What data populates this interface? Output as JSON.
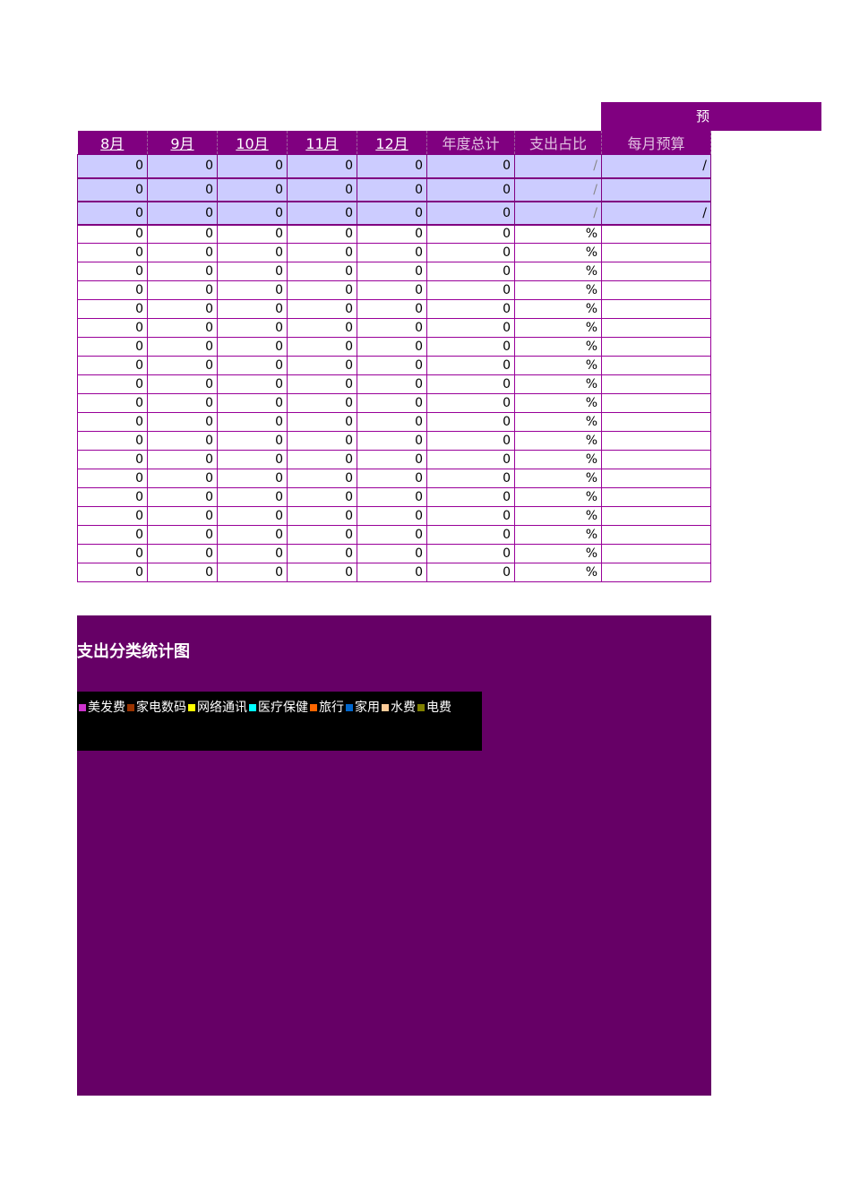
{
  "banner": "预",
  "headers": [
    {
      "label": "8月",
      "u": true
    },
    {
      "label": "9月",
      "u": true
    },
    {
      "label": "10月",
      "u": true
    },
    {
      "label": "11月",
      "u": true
    },
    {
      "label": "12月",
      "u": true
    },
    {
      "label": "年度总计",
      "u": false
    },
    {
      "label": "支出占比",
      "u": false
    },
    {
      "label": "每月预算",
      "u": false
    }
  ],
  "summary_rows": [
    {
      "months": [
        "0",
        "0",
        "0",
        "0",
        "0"
      ],
      "total": "0",
      "ratio": "/",
      "budget": "/"
    },
    {
      "months": [
        "0",
        "0",
        "0",
        "0",
        "0"
      ],
      "total": "0",
      "ratio": "/",
      "budget": ""
    },
    {
      "months": [
        "0",
        "0",
        "0",
        "0",
        "0"
      ],
      "total": "0",
      "ratio": "/",
      "budget": "/"
    }
  ],
  "detail_rows": [
    {
      "months": [
        "0",
        "0",
        "0",
        "0",
        "0"
      ],
      "total": "0",
      "ratio": "%",
      "budget": ""
    },
    {
      "months": [
        "0",
        "0",
        "0",
        "0",
        "0"
      ],
      "total": "0",
      "ratio": "%",
      "budget": ""
    },
    {
      "months": [
        "0",
        "0",
        "0",
        "0",
        "0"
      ],
      "total": "0",
      "ratio": "%",
      "budget": ""
    },
    {
      "months": [
        "0",
        "0",
        "0",
        "0",
        "0"
      ],
      "total": "0",
      "ratio": "%",
      "budget": ""
    },
    {
      "months": [
        "0",
        "0",
        "0",
        "0",
        "0"
      ],
      "total": "0",
      "ratio": "%",
      "budget": ""
    },
    {
      "months": [
        "0",
        "0",
        "0",
        "0",
        "0"
      ],
      "total": "0",
      "ratio": "%",
      "budget": ""
    },
    {
      "months": [
        "0",
        "0",
        "0",
        "0",
        "0"
      ],
      "total": "0",
      "ratio": "%",
      "budget": ""
    },
    {
      "months": [
        "0",
        "0",
        "0",
        "0",
        "0"
      ],
      "total": "0",
      "ratio": "%",
      "budget": ""
    },
    {
      "months": [
        "0",
        "0",
        "0",
        "0",
        "0"
      ],
      "total": "0",
      "ratio": "%",
      "budget": ""
    },
    {
      "months": [
        "0",
        "0",
        "0",
        "0",
        "0"
      ],
      "total": "0",
      "ratio": "%",
      "budget": ""
    },
    {
      "months": [
        "0",
        "0",
        "0",
        "0",
        "0"
      ],
      "total": "0",
      "ratio": "%",
      "budget": ""
    },
    {
      "months": [
        "0",
        "0",
        "0",
        "0",
        "0"
      ],
      "total": "0",
      "ratio": "%",
      "budget": ""
    },
    {
      "months": [
        "0",
        "0",
        "0",
        "0",
        "0"
      ],
      "total": "0",
      "ratio": "%",
      "budget": ""
    },
    {
      "months": [
        "0",
        "0",
        "0",
        "0",
        "0"
      ],
      "total": "0",
      "ratio": "%",
      "budget": ""
    },
    {
      "months": [
        "0",
        "0",
        "0",
        "0",
        "0"
      ],
      "total": "0",
      "ratio": "%",
      "budget": ""
    },
    {
      "months": [
        "0",
        "0",
        "0",
        "0",
        "0"
      ],
      "total": "0",
      "ratio": "%",
      "budget": ""
    },
    {
      "months": [
        "0",
        "0",
        "0",
        "0",
        "0"
      ],
      "total": "0",
      "ratio": "%",
      "budget": ""
    },
    {
      "months": [
        "0",
        "0",
        "0",
        "0",
        "0"
      ],
      "total": "0",
      "ratio": "%",
      "budget": ""
    },
    {
      "months": [
        "0",
        "0",
        "0",
        "0",
        "0"
      ],
      "total": "0",
      "ratio": "%",
      "budget": ""
    }
  ],
  "chart": {
    "title": "支出分类统计图",
    "legend": [
      {
        "label": "美发费",
        "color": "#cc33cc"
      },
      {
        "label": "家电数码",
        "color": "#993300"
      },
      {
        "label": "网络通讯",
        "color": "#ffff00"
      },
      {
        "label": "医疗保健",
        "color": "#00ffff"
      },
      {
        "label": "旅行",
        "color": "#ff6600"
      },
      {
        "label": "家用",
        "color": "#0066cc"
      },
      {
        "label": "水费",
        "color": "#ffcc99"
      },
      {
        "label": "电费",
        "color": "#808000"
      }
    ]
  }
}
